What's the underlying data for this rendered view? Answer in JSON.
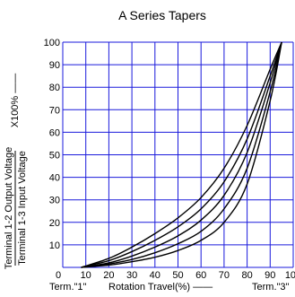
{
  "chart_data": {
    "type": "line",
    "title": "A Series Tapers",
    "ylabel_top": "Terminal 1-2 Output Voltage",
    "ylabel_bottom": "Terminal 1-3 Input Voltage",
    "ylabel_unit": "X100% ——",
    "xlabel": "Rotation Travel(%) ——",
    "x_start_label": "Term.\"1\"",
    "x_end_label": "Term.\"3\"",
    "xlim": [
      0,
      100
    ],
    "ylim": [
      0,
      100
    ],
    "xticks": [
      0,
      10,
      20,
      30,
      40,
      50,
      60,
      70,
      80,
      90,
      100
    ],
    "yticks": [
      10,
      20,
      30,
      40,
      50,
      60,
      70,
      80,
      90,
      100
    ],
    "grid": true,
    "colors": {
      "grid": "#1a1adc",
      "line": "#000000",
      "series_label": "#e000c0"
    },
    "series": [
      {
        "name": "",
        "x": [
          8,
          20,
          30,
          40,
          50,
          60,
          70,
          80,
          90,
          95
        ],
        "y": [
          0,
          4,
          9,
          15,
          22,
          31,
          44,
          63,
          88,
          100
        ]
      },
      {
        "name": "",
        "x": [
          8,
          20,
          30,
          40,
          50,
          60,
          70,
          80,
          90,
          95
        ],
        "y": [
          0,
          3,
          7,
          12,
          18,
          26,
          38,
          57,
          85,
          100
        ]
      },
      {
        "name": "",
        "x": [
          8,
          20,
          30,
          40,
          50,
          60,
          70,
          80,
          90,
          95
        ],
        "y": [
          0,
          2,
          5,
          9,
          14,
          21,
          32,
          51,
          82,
          100
        ]
      },
      {
        "name": "",
        "x": [
          8,
          20,
          30,
          40,
          50,
          60,
          70,
          80,
          90,
          95
        ],
        "y": [
          0,
          1.5,
          3.5,
          6.5,
          10.5,
          16,
          26,
          44,
          78,
          100
        ]
      },
      {
        "name": "",
        "x": [
          8,
          20,
          30,
          40,
          50,
          60,
          70,
          80,
          90,
          95
        ],
        "y": [
          0,
          1,
          2.5,
          4.5,
          7.5,
          12,
          20,
          37,
          74,
          100
        ]
      }
    ]
  }
}
